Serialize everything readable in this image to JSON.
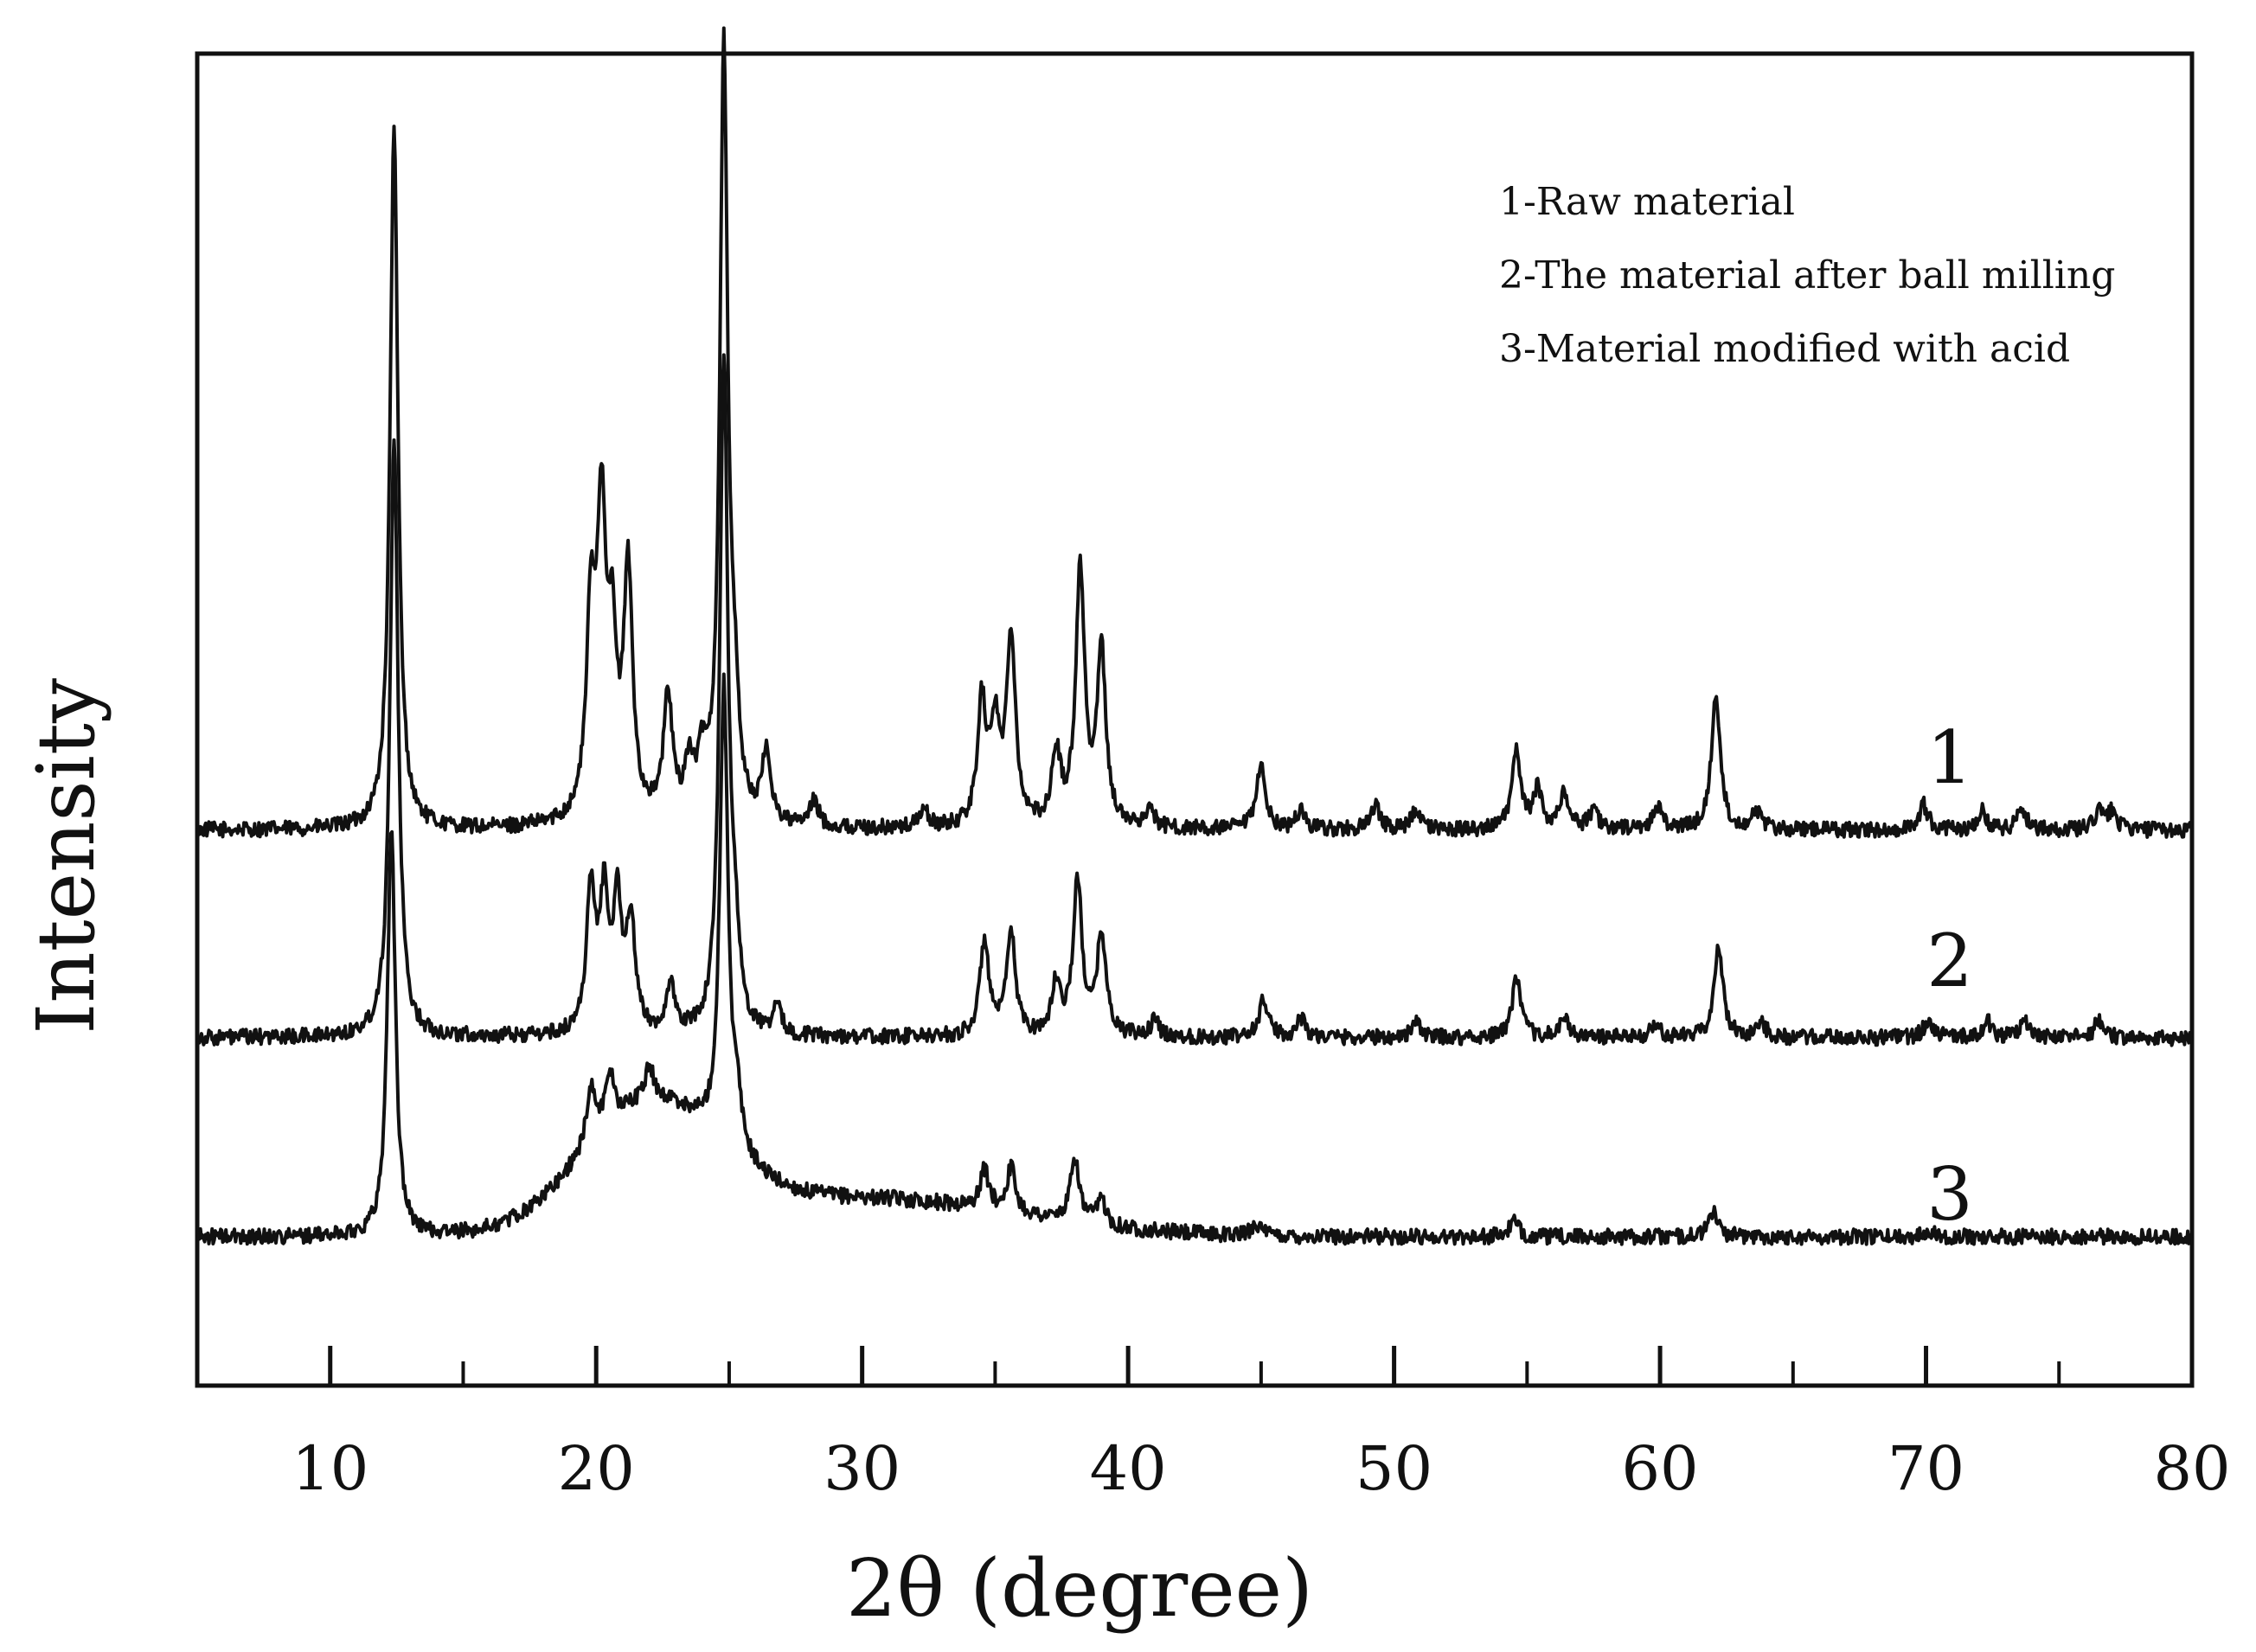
{
  "chart_data": {
    "type": "line",
    "title": "",
    "xlabel": "2θ (degree)",
    "ylabel": "Intensity",
    "xlim": [
      5,
      80
    ],
    "xticks": [
      10,
      20,
      30,
      40,
      50,
      60,
      70,
      80
    ],
    "xtick_labels": [
      "10",
      "20",
      "30",
      "40",
      "50",
      "60",
      "70",
      "80"
    ],
    "y_tick_labels_shown": false,
    "grid": false,
    "legend_position": "top-right",
    "legend": [
      "1-Raw material",
      "2-The material after ball milling",
      "3-Material modified with acid"
    ],
    "series": [
      {
        "name": "1",
        "color": "#111111",
        "baseline": 0,
        "peaks": [
          [
            12.4,
            545
          ],
          [
            19.8,
            150
          ],
          [
            20.2,
            225
          ],
          [
            20.6,
            120
          ],
          [
            21.2,
            190
          ],
          [
            22.7,
            95
          ],
          [
            23.5,
            40
          ],
          [
            24.0,
            40
          ],
          [
            24.8,
            600
          ],
          [
            25.2,
            70
          ],
          [
            26.4,
            55
          ],
          [
            28.2,
            20
          ],
          [
            32.3,
            15
          ],
          [
            34.5,
            95
          ],
          [
            35.0,
            75
          ],
          [
            35.6,
            150
          ],
          [
            37.3,
            55
          ],
          [
            38.2,
            200
          ],
          [
            39.0,
            135
          ],
          [
            40.8,
            15
          ],
          [
            45.0,
            50
          ],
          [
            46.5,
            15
          ],
          [
            49.3,
            18
          ],
          [
            50.8,
            15
          ],
          [
            54.6,
            60
          ],
          [
            55.4,
            30
          ],
          [
            56.4,
            30
          ],
          [
            57.5,
            15
          ],
          [
            59.9,
            18
          ],
          [
            62.1,
            105
          ],
          [
            63.6,
            15
          ],
          [
            69.9,
            20
          ],
          [
            72.1,
            15
          ],
          [
            73.6,
            18
          ],
          [
            76.5,
            14
          ],
          [
            77.0,
            14
          ]
        ]
      },
      {
        "name": "2",
        "color": "#111111",
        "baseline": 0,
        "peaks": [
          [
            12.4,
            470
          ],
          [
            19.8,
            110
          ],
          [
            20.3,
            100
          ],
          [
            20.8,
            95
          ],
          [
            21.3,
            85
          ],
          [
            22.8,
            35
          ],
          [
            24.8,
            525
          ],
          [
            25.2,
            60
          ],
          [
            26.8,
            20
          ],
          [
            34.6,
            75
          ],
          [
            35.6,
            80
          ],
          [
            37.3,
            40
          ],
          [
            38.1,
            120
          ],
          [
            39.0,
            80
          ],
          [
            41.0,
            12
          ],
          [
            45.1,
            30
          ],
          [
            46.5,
            15
          ],
          [
            50.8,
            12
          ],
          [
            54.6,
            45
          ],
          [
            56.4,
            15
          ],
          [
            59.8,
            10
          ],
          [
            62.2,
            70
          ],
          [
            63.8,
            12
          ],
          [
            70.1,
            15
          ],
          [
            72.3,
            13
          ],
          [
            73.7,
            12
          ],
          [
            76.5,
            14
          ]
        ]
      },
      {
        "name": "3",
        "color": "#111111",
        "baseline": 0,
        "peaks": [
          [
            12.3,
            320
          ],
          [
            19.8,
            45
          ],
          [
            20.5,
            40
          ],
          [
            22.0,
            25
          ],
          [
            24.8,
            360
          ],
          [
            25.3,
            35
          ],
          [
            34.6,
            30
          ],
          [
            35.6,
            35
          ],
          [
            38.0,
            50
          ],
          [
            39.0,
            20
          ],
          [
            44.8,
            10
          ],
          [
            54.5,
            12
          ],
          [
            62.0,
            20
          ],
          [
            70.1,
            6
          ]
        ]
      }
    ],
    "series_labels": [
      "1",
      "2",
      "3"
    ]
  }
}
